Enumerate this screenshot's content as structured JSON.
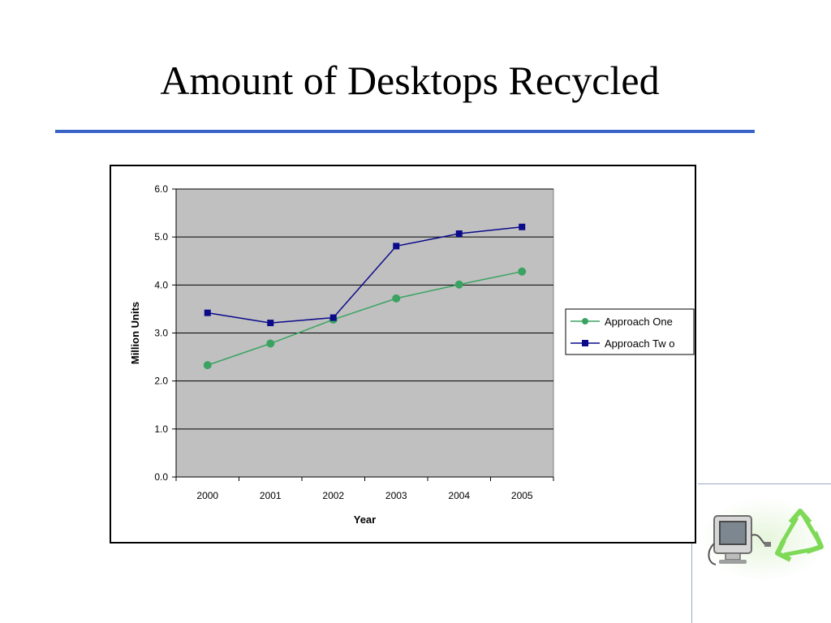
{
  "slide": {
    "title": "Amount of Desktops Recycled"
  },
  "colors": {
    "title_rule": "#3a63c8",
    "plot_bg": "#c0c0c0",
    "approach_one": "#3aa361",
    "approach_two": "#0a0a8a",
    "gridline": "#000000"
  },
  "icons": [
    "computer-monitor-icon",
    "recycle-icon"
  ],
  "chart_data": {
    "type": "line",
    "title": "",
    "xlabel": "Year",
    "ylabel": "Million Units",
    "categories": [
      "2000",
      "2001",
      "2002",
      "2003",
      "2004",
      "2005"
    ],
    "ylim": [
      0,
      6
    ],
    "yticks": [
      "0.0",
      "1.0",
      "2.0",
      "3.0",
      "4.0",
      "5.0",
      "6.0"
    ],
    "grid": true,
    "legend_position": "right",
    "series": [
      {
        "name": "Approach One",
        "marker": "circle",
        "values": [
          2.33,
          2.78,
          3.28,
          3.72,
          4.01,
          4.28
        ]
      },
      {
        "name": "Approach Tw o",
        "marker": "square",
        "values": [
          3.42,
          3.21,
          3.32,
          4.81,
          5.07,
          5.21
        ]
      }
    ]
  }
}
